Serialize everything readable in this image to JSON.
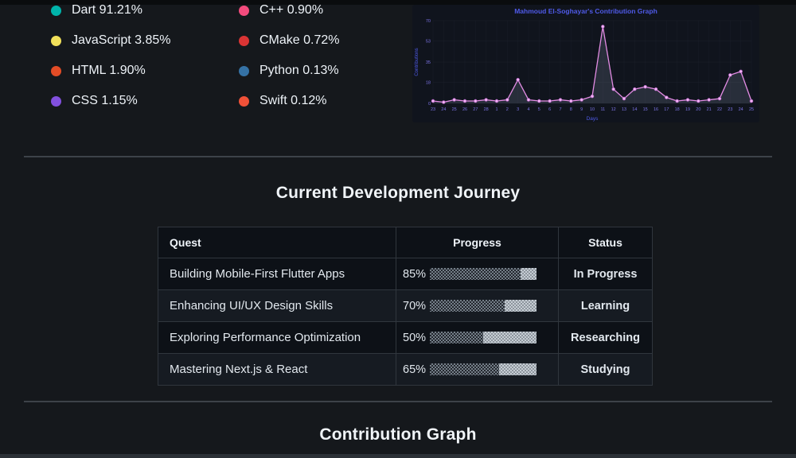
{
  "languages": {
    "items_left": [
      {
        "name": "Dart",
        "pct": "91.21%",
        "color": "#00b4ab"
      },
      {
        "name": "JavaScript",
        "pct": "3.85%",
        "color": "#f1e05a"
      },
      {
        "name": "HTML",
        "pct": "1.90%",
        "color": "#e34c26"
      },
      {
        "name": "CSS",
        "pct": "1.15%",
        "color": "#8250df"
      }
    ],
    "items_right": [
      {
        "name": "C++",
        "pct": "0.90%",
        "color": "#f34b7d"
      },
      {
        "name": "CMake",
        "pct": "0.72%",
        "color": "#da3434"
      },
      {
        "name": "Python",
        "pct": "0.13%",
        "color": "#3572a5"
      },
      {
        "name": "Swift",
        "pct": "0.12%",
        "color": "#f05138"
      }
    ]
  },
  "chart_data": {
    "type": "line",
    "title": "Mahmoud El-Soghayar's Contribution Graph",
    "xlabel": "Days",
    "ylabel": "Contributions",
    "x": [
      "23",
      "24",
      "25",
      "26",
      "27",
      "28",
      "1",
      "2",
      "3",
      "4",
      "5",
      "6",
      "7",
      "8",
      "9",
      "10",
      "11",
      "12",
      "13",
      "14",
      "15",
      "16",
      "17",
      "18",
      "19",
      "20",
      "21",
      "22",
      "23",
      "24",
      "25"
    ],
    "values": [
      2,
      1,
      3,
      2,
      2,
      3,
      2,
      3,
      20,
      3,
      2,
      2,
      3,
      2,
      3,
      6,
      65,
      12,
      4,
      12,
      14,
      12,
      5,
      2,
      3,
      2,
      3,
      4,
      24,
      27,
      2
    ],
    "yticks": [
      0,
      18,
      35,
      53,
      70
    ],
    "ylim": [
      0,
      70
    ],
    "grid": true,
    "legend_position": "none",
    "colors": {
      "line": "#e38ce4",
      "point_fill": "#f3b5f4",
      "point_stroke": "#b05fc2",
      "area_fill": "rgba(140,150,175,0.20)",
      "title": "#4f5ae8",
      "axis_text": "#7d74e8",
      "grid_line": "#1c212c",
      "background": "#10141d"
    }
  },
  "journey": {
    "title": "Current Development Journey",
    "table": {
      "headers": [
        "Quest",
        "Progress",
        "Status"
      ],
      "rows": [
        {
          "quest": "Building Mobile-First Flutter Apps",
          "pct": 85,
          "pct_label": "85%",
          "status": "In Progress"
        },
        {
          "quest": "Enhancing UI/UX Design Skills",
          "pct": 70,
          "pct_label": "70%",
          "status": "Learning"
        },
        {
          "quest": "Exploring Performance Optimization",
          "pct": 50,
          "pct_label": "50%",
          "status": "Researching"
        },
        {
          "quest": "Mastering Next.js & React",
          "pct": 65,
          "pct_label": "65%",
          "status": "Studying"
        }
      ]
    }
  },
  "contribution": {
    "title": "Contribution Graph"
  }
}
